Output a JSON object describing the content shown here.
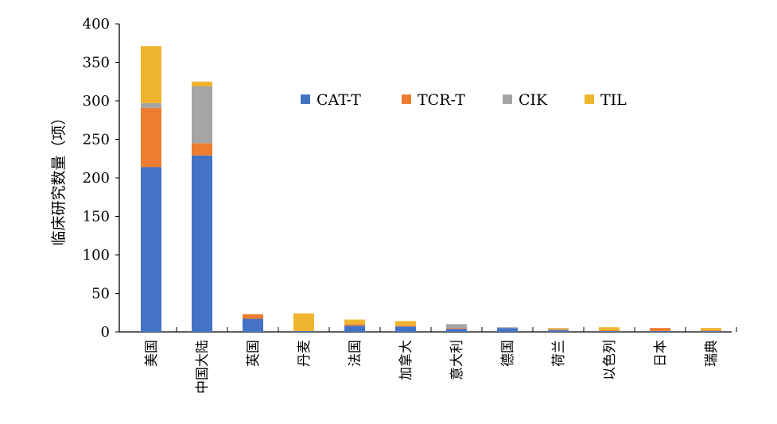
{
  "chart_data": {
    "type": "bar",
    "stacked": true,
    "title": "",
    "xlabel": "",
    "ylabel": "临床研究数量（项）",
    "ylim": [
      0,
      400
    ],
    "yticks": [
      0,
      50,
      100,
      150,
      200,
      250,
      300,
      350,
      400
    ],
    "grid": false,
    "legend_position": "top-center",
    "categories": [
      "美国",
      "中国大陆",
      "英国",
      "丹麦",
      "法国",
      "加拿大",
      "意大利",
      "德国",
      "荷兰",
      "以色列",
      "日本",
      "瑞典"
    ],
    "series": [
      {
        "name": "CAT-T",
        "color": "#4472C4",
        "values": [
          214,
          229,
          17,
          1,
          8,
          7,
          4,
          5,
          2,
          1,
          1,
          1
        ]
      },
      {
        "name": "TCR-T",
        "color": "#ED7D31",
        "values": [
          77,
          16,
          6,
          0,
          2,
          1,
          1,
          0,
          1,
          1,
          4,
          1
        ]
      },
      {
        "name": "CIK",
        "color": "#A5A5A5",
        "values": [
          6,
          74,
          0,
          0,
          0,
          0,
          5,
          1,
          1,
          0,
          0,
          0
        ]
      },
      {
        "name": "TIL",
        "color": "#F0B52E",
        "values": [
          74,
          6,
          0,
          23,
          6,
          6,
          0,
          0,
          1,
          4,
          0,
          3
        ]
      }
    ]
  }
}
